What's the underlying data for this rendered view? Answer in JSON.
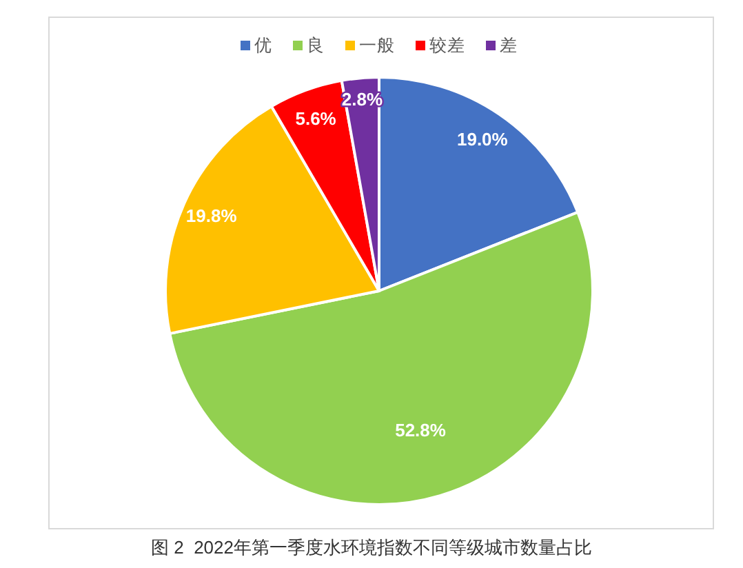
{
  "chart_data": {
    "type": "pie",
    "title": "图 2  2022年第一季度水环境指数不同等级城市数量占比",
    "categories": [
      "优",
      "良",
      "一般",
      "较差",
      "差"
    ],
    "values": [
      19.0,
      52.8,
      19.8,
      5.6,
      2.8
    ],
    "colors": [
      "#4472c4",
      "#92d050",
      "#ffc000",
      "#ff0000",
      "#7030a0"
    ],
    "value_labels": [
      "19.0%",
      "52.8%",
      "19.8%",
      "5.6%",
      "2.8%"
    ],
    "legend": "top"
  }
}
